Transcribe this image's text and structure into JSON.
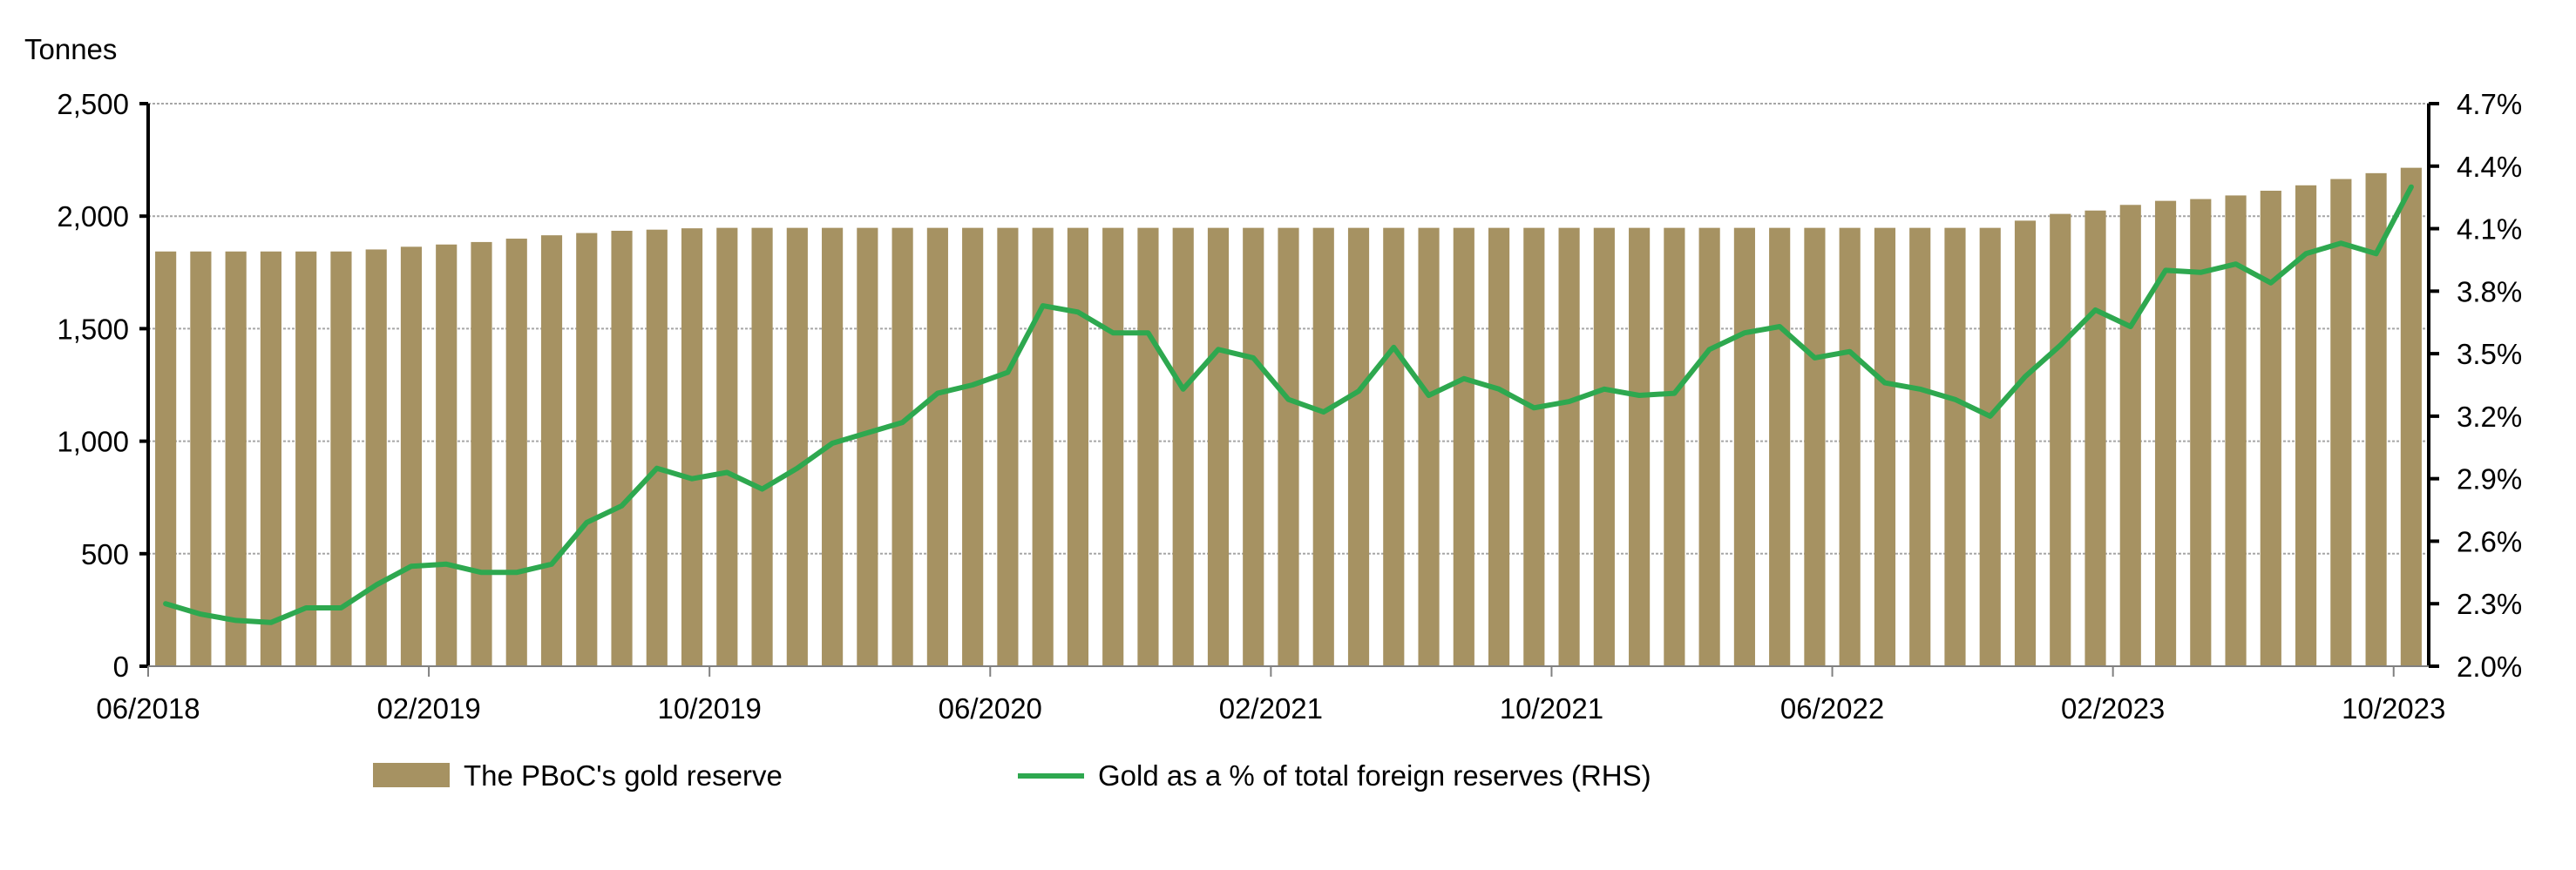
{
  "chart_data": {
    "type": "bar+line",
    "ylabel": "Tonnes",
    "colors": {
      "bar": "#A69262",
      "line": "#2EA84F",
      "grid": "#A6A6A6"
    },
    "grid": true,
    "legend_position": "bottom",
    "left_axis": {
      "ylim": [
        0,
        2500
      ],
      "ticks": [
        0,
        500,
        1000,
        1500,
        2000,
        2500
      ],
      "tick_labels": [
        "0",
        "500",
        "1,000",
        "1,500",
        "2,000",
        "2,500"
      ]
    },
    "right_axis": {
      "ylim": [
        2.0,
        4.7
      ],
      "ticks": [
        2.0,
        2.3,
        2.6,
        2.9,
        3.2,
        3.5,
        3.8,
        4.1,
        4.4,
        4.7
      ],
      "tick_labels": [
        "2.0%",
        "2.3%",
        "2.6%",
        "2.9%",
        "3.2%",
        "3.5%",
        "3.8%",
        "4.1%",
        "4.4%",
        "4.7%"
      ]
    },
    "x_tick_labels": [
      "06/2018",
      "02/2019",
      "10/2019",
      "06/2020",
      "02/2021",
      "10/2021",
      "06/2022",
      "02/2023",
      "10/2023"
    ],
    "categories": [
      "06/2018",
      "07/2018",
      "08/2018",
      "09/2018",
      "10/2018",
      "11/2018",
      "12/2018",
      "01/2019",
      "02/2019",
      "03/2019",
      "04/2019",
      "05/2019",
      "06/2019",
      "07/2019",
      "08/2019",
      "09/2019",
      "10/2019",
      "11/2019",
      "12/2019",
      "01/2020",
      "02/2020",
      "03/2020",
      "04/2020",
      "05/2020",
      "06/2020",
      "07/2020",
      "08/2020",
      "09/2020",
      "10/2020",
      "11/2020",
      "12/2020",
      "01/2021",
      "02/2021",
      "03/2021",
      "04/2021",
      "05/2021",
      "06/2021",
      "07/2021",
      "08/2021",
      "09/2021",
      "10/2021",
      "11/2021",
      "12/2021",
      "01/2022",
      "02/2022",
      "03/2022",
      "04/2022",
      "05/2022",
      "06/2022",
      "07/2022",
      "08/2022",
      "09/2022",
      "10/2022",
      "11/2022",
      "12/2022",
      "01/2023",
      "02/2023",
      "03/2023",
      "04/2023",
      "05/2023",
      "06/2023",
      "07/2023",
      "08/2023",
      "09/2023",
      "10/2023"
    ],
    "series": [
      {
        "name": "The PBoC's gold reserve",
        "type": "bar",
        "axis": "left",
        "values": [
          1843,
          1843,
          1843,
          1843,
          1843,
          1843,
          1852,
          1864,
          1874,
          1885,
          1900,
          1915,
          1925,
          1935,
          1940,
          1946,
          1948,
          1948,
          1948,
          1948,
          1948,
          1948,
          1948,
          1948,
          1948,
          1948,
          1948,
          1948,
          1948,
          1948,
          1948,
          1948,
          1948,
          1948,
          1948,
          1948,
          1948,
          1948,
          1948,
          1948,
          1948,
          1948,
          1948,
          1948,
          1948,
          1948,
          1948,
          1948,
          1948,
          1948,
          1948,
          1948,
          1948,
          1980,
          2010,
          2025,
          2050,
          2068,
          2076,
          2092,
          2113,
          2137,
          2165,
          2191,
          2215
        ]
      },
      {
        "name": "Gold as a % of total foreign reserves (RHS)",
        "type": "line",
        "axis": "right",
        "values": [
          2.3,
          2.25,
          2.22,
          2.21,
          2.28,
          2.28,
          2.39,
          2.48,
          2.49,
          2.45,
          2.45,
          2.49,
          2.69,
          2.77,
          2.95,
          2.9,
          2.93,
          2.85,
          2.95,
          3.07,
          3.12,
          3.17,
          3.31,
          3.35,
          3.41,
          3.73,
          3.7,
          3.6,
          3.6,
          3.33,
          3.52,
          3.48,
          3.28,
          3.22,
          3.32,
          3.53,
          3.3,
          3.38,
          3.33,
          3.24,
          3.27,
          3.33,
          3.3,
          3.31,
          3.52,
          3.6,
          3.63,
          3.48,
          3.51,
          3.36,
          3.33,
          3.28,
          3.2,
          3.39,
          3.54,
          3.71,
          3.63,
          3.9,
          3.89,
          3.93,
          3.84,
          3.98,
          4.03,
          3.98,
          4.3
        ]
      }
    ]
  }
}
